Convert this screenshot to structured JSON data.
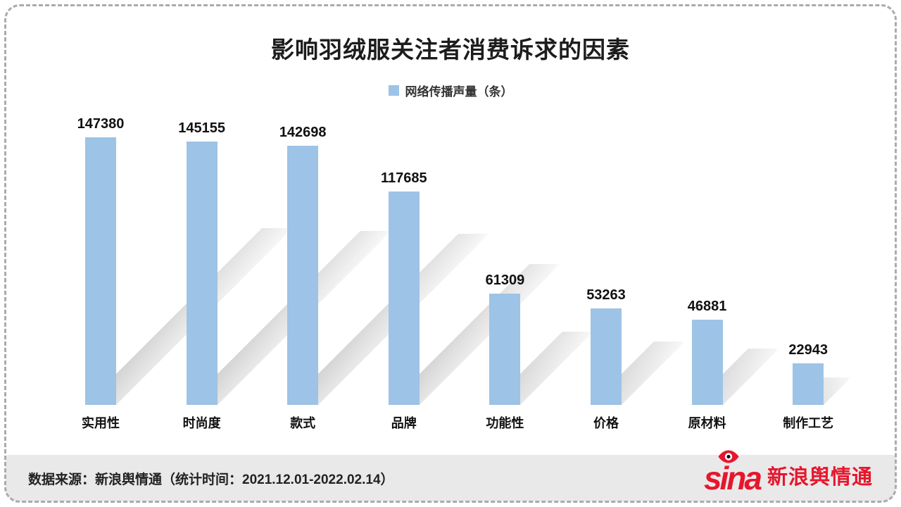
{
  "chart_data": {
    "type": "bar",
    "title": "影响羽绒服关注者消费诉求的因素",
    "legend": "网络传播声量（条）",
    "categories": [
      "实用性",
      "时尚度",
      "款式",
      "品牌",
      "功能性",
      "价格",
      "原材料",
      "制作工艺"
    ],
    "values": [
      147380,
      145155,
      142698,
      117685,
      61309,
      53263,
      46881,
      22943
    ],
    "ylim": [
      0,
      150000
    ],
    "grid": false,
    "legend_position": "top",
    "bar_color": "#9DC3E6",
    "shadow_color": "#D9D9D9"
  },
  "footer": {
    "source_text": "数据来源：新浪舆情通（统计时间：2021.12.01-2022.02.14）",
    "logo_text": "sina",
    "logo_brand": "新浪舆情通",
    "logo_color": "#E6162D"
  }
}
